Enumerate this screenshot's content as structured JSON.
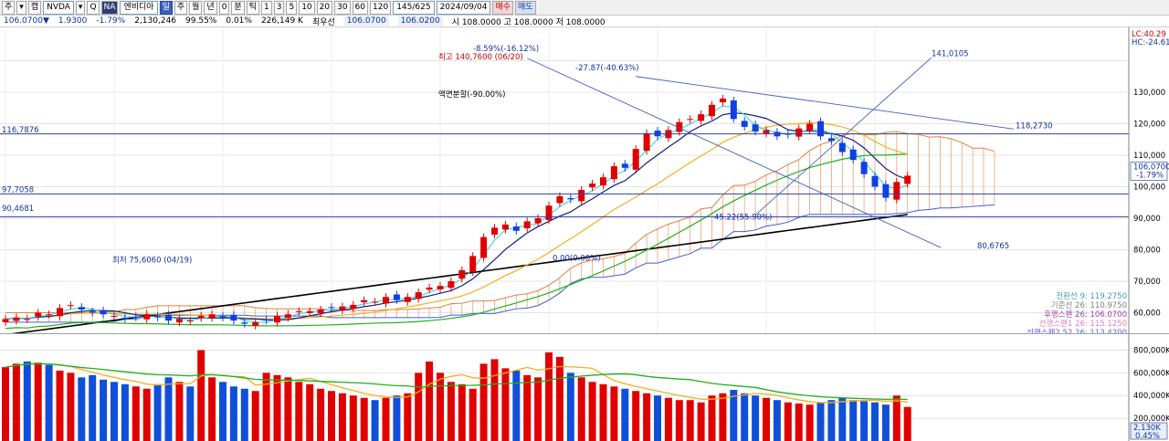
{
  "toolbar": {
    "items": [
      "주",
      "▾",
      "캡",
      "NVDA",
      "▾",
      "Q",
      "NA",
      "엔비디아",
      "일",
      "주",
      "월",
      "년",
      "0",
      "분",
      "틱",
      "1",
      "3",
      "5",
      "10",
      "20",
      "30",
      "60",
      "120",
      "145/625",
      "2024/09/04",
      "매수",
      "매도"
    ]
  },
  "quote": {
    "price": "106.0700▼",
    "change": "1.9300",
    "change_pct": "-1.79%",
    "volume": "2,130,246",
    "ratio": "99.55%",
    "vol_pct": "0.01%",
    "amount": "226,149 K",
    "best_ask_label": "최우선",
    "best_ask": "106.0700",
    "best_bid": "106.0200",
    "ohl": "시 108.0000  고 108.0000  저 108.0000"
  },
  "right_top": {
    "lc": "LC:40.29",
    "hc": "HC:-24.61"
  },
  "price_axis": {
    "ylim": [
      50000,
      150000
    ],
    "ticks": [
      "130,000",
      "120,000",
      "110,000",
      "100,000",
      "90,000",
      "80,000",
      "70,000",
      "60,000"
    ],
    "current": "106,0700",
    "current_pct": "-1.79%"
  },
  "volume_axis": {
    "ticks": [
      "800,000K",
      "600,000K",
      "400,000K",
      "200,000K"
    ],
    "current": "2,130K",
    "current_pct": "0.45%"
  },
  "annotations": {
    "high": "최고 140,7600 (06/20)",
    "high_pct": "-8.59%(-16.12%)",
    "drop": "-27.87(-40.63%)",
    "split": "액면분할(-90.00%)",
    "low": "최저 75,6060 (04/19)",
    "swing_low": "45.22(55.90%)",
    "zero": "0.00(0.00%)",
    "trend_top": "141,0105",
    "trend_right": "118,2730",
    "trend_down": "80,6765",
    "h_116": "116,7876",
    "h_97": "97,7058",
    "h_90": "90,4681"
  },
  "legend": [
    {
      "text": "전환선 9: 119.2750",
      "color": "#40a0a0"
    },
    {
      "text": "기준선 26: 110.9750",
      "color": "#808080"
    },
    {
      "text": "후행스팬 26: 106.0700",
      "color": "#a040a0"
    },
    {
      "text": "선행스팬1 26: 115.1250",
      "color": "#e080c0"
    },
    {
      "text": "선행스팬2 52,26: 113.4200",
      "color": "#6060e0"
    }
  ],
  "chart_data": {
    "type": "candlestick",
    "count": 84,
    "close": [
      58,
      58.5,
      58,
      60,
      59.5,
      61.5,
      62.4,
      61,
      60,
      59.5,
      59,
      58,
      58.5,
      59.5,
      58.5,
      57.5,
      58,
      57.5,
      59,
      59.5,
      58.5,
      57.5,
      56.5,
      57,
      57.5,
      59,
      59.5,
      60.5,
      60.5,
      61,
      61.5,
      62,
      62.5,
      64,
      63.5,
      65,
      64,
      65,
      66.5,
      68,
      68.5,
      70,
      73.5,
      78,
      84,
      87,
      88,
      86,
      89,
      90,
      94,
      97,
      96,
      99,
      101,
      103,
      106.5,
      106,
      112,
      117,
      116,
      118,
      120.5,
      121.5,
      123,
      126,
      128,
      121.5,
      119,
      117.5,
      118,
      116,
      116.5,
      118.5,
      120,
      116,
      114.5,
      111,
      108.5,
      104,
      100,
      96.5,
      101.5,
      103.5
    ],
    "volume": [
      650,
      680,
      700,
      690,
      670,
      620,
      600,
      560,
      580,
      540,
      520,
      500,
      480,
      460,
      500,
      560,
      520,
      480,
      800,
      560,
      520,
      480,
      460,
      440,
      600,
      580,
      560,
      520,
      500,
      460,
      440,
      420,
      400,
      380,
      360,
      380,
      400,
      420,
      600,
      700,
      600,
      520,
      500,
      460,
      680,
      720,
      640,
      620,
      580,
      560,
      780,
      740,
      600,
      560,
      520,
      500,
      480,
      460,
      440,
      420,
      400,
      380,
      360,
      360,
      340,
      400,
      420,
      450,
      420,
      400,
      380,
      360,
      340,
      330,
      320,
      340,
      360,
      380,
      360,
      350,
      340,
      320,
      400,
      300
    ],
    "price_ylim": [
      50,
      150
    ],
    "volume_ylim": [
      0,
      900
    ]
  }
}
